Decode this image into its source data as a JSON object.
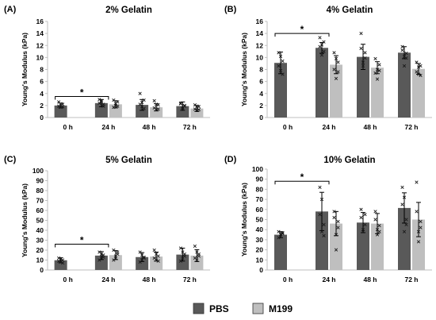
{
  "colors": {
    "pbs": "#595959",
    "m199": "#bfbfbf",
    "axis": "#bfbfbf",
    "point": "#1a1a1a"
  },
  "legend": [
    {
      "label": "PBS",
      "color": "#595959"
    },
    {
      "label": "M199",
      "color": "#bfbfbf"
    }
  ],
  "chart_data": [
    {
      "letter": "(A)",
      "title": "2% Gelatin",
      "type": "bar",
      "ylabel": "Young's Modulus (kPa)",
      "ylim": [
        0,
        16
      ],
      "yticks": [
        0,
        2,
        4,
        6,
        8,
        10,
        12,
        14,
        16
      ],
      "categories": [
        "0 h",
        "24 h",
        "48 h",
        "72 h"
      ],
      "series": [
        {
          "name": "PBS",
          "values": [
            2.0,
            2.4,
            2.1,
            1.9
          ],
          "errors": [
            0.4,
            0.6,
            0.9,
            0.7
          ],
          "points": [
            [
              2.6,
              1.7,
              2.2,
              1.9,
              2.3,
              1.8
            ],
            [
              3.0,
              2.6,
              1.9,
              2.4,
              2.8,
              2.2
            ],
            [
              4.0,
              2.5,
              1.5,
              2.2,
              1.8,
              2.9
            ],
            [
              2.4,
              1.4,
              1.9,
              2.3,
              1.6,
              2.0
            ]
          ]
        },
        {
          "name": "M199",
          "values": [
            null,
            2.2,
            1.7,
            1.5
          ],
          "errors": [
            null,
            0.6,
            0.6,
            0.5
          ],
          "points": [
            [],
            [
              2.9,
              2.0,
              2.6,
              1.7,
              2.3,
              1.9
            ],
            [
              2.8,
              1.3,
              2.1,
              1.6,
              2.2,
              1.4
            ],
            [
              2.1,
              1.2,
              1.8,
              1.4,
              1.9,
              1.3
            ]
          ]
        }
      ],
      "significance": [
        {
          "from": 0,
          "to": 1,
          "label": "*",
          "y": 3.5
        }
      ]
    },
    {
      "letter": "(B)",
      "title": "4% Gelatin",
      "type": "bar",
      "ylabel": "Young's Modulus (kPa)",
      "ylim": [
        0,
        16
      ],
      "yticks": [
        0,
        2,
        4,
        6,
        8,
        10,
        12,
        14,
        16
      ],
      "categories": [
        "0 h",
        "24 h",
        "48 h",
        "72 h"
      ],
      "series": [
        {
          "name": "PBS",
          "values": [
            9.1,
            11.6,
            10.1,
            10.8
          ],
          "errors": [
            1.8,
            0.9,
            2.1,
            1.0
          ],
          "points": [
            [
              10.8,
              7.8,
              9.4,
              8.6,
              10.2,
              7.2
            ],
            [
              13.3,
              12.1,
              11.0,
              11.8,
              10.4,
              12.6
            ],
            [
              14.0,
              9.2,
              10.8,
              11.5,
              8.6,
              9.9
            ],
            [
              11.8,
              10.2,
              9.9,
              11.2,
              8.6,
              10.7
            ]
          ]
        },
        {
          "name": "M199",
          "values": [
            null,
            8.8,
            8.3,
            8.1
          ],
          "errors": [
            null,
            1.5,
            1.0,
            0.9
          ],
          "points": [
            [],
            [
              10.8,
              6.5,
              9.2,
              8.0,
              9.8,
              7.6
            ],
            [
              9.8,
              6.4,
              8.8,
              7.4,
              8.0,
              7.8
            ],
            [
              9.2,
              7.2,
              8.6,
              7.6,
              8.4,
              7.0
            ]
          ]
        }
      ],
      "significance": [
        {
          "from": 0,
          "to": 1,
          "label": "*",
          "y": 14.0
        }
      ]
    },
    {
      "letter": "(C)",
      "title": "5% Gelatin",
      "type": "bar",
      "ylabel": "Young's Modulus (kPa)",
      "ylim": [
        0,
        100
      ],
      "yticks": [
        0,
        10,
        20,
        30,
        40,
        50,
        60,
        70,
        80,
        90,
        100
      ],
      "categories": [
        "0 h",
        "24 h",
        "48 h",
        "72 h"
      ],
      "series": [
        {
          "name": "PBS",
          "values": [
            9.8,
            14.5,
            13.0,
            15.5
          ],
          "errors": [
            2.5,
            4.0,
            4.5,
            6.5
          ],
          "points": [
            [
              12,
              8,
              10,
              9,
              11,
              7
            ],
            [
              18,
              12,
              15,
              10,
              16,
              13
            ],
            [
              18,
              10,
              13,
              8,
              15,
              12
            ],
            [
              22,
              12,
              16,
              9,
              18,
              14
            ]
          ]
        },
        {
          "name": "M199",
          "values": [
            null,
            15.0,
            13.5,
            14.5
          ],
          "errors": [
            null,
            4.5,
            4.5,
            6.0
          ],
          "points": [
            [],
            [
              20,
              12,
              16,
              10,
              14,
              18
            ],
            [
              20,
              10,
              14,
              12,
              16,
              9
            ],
            [
              24,
              10,
              16,
              12,
              18,
              14
            ]
          ]
        }
      ],
      "significance": [
        {
          "from": 0,
          "to": 1,
          "label": "*",
          "y": 26
        }
      ]
    },
    {
      "letter": "(D)",
      "title": "10% Gelatin",
      "type": "bar",
      "ylabel": "Young's Modulus (kPa)",
      "ylim": [
        0,
        100
      ],
      "yticks": [
        0,
        10,
        20,
        30,
        40,
        50,
        60,
        70,
        80,
        90,
        100
      ],
      "categories": [
        "0 h",
        "24 h",
        "48 h",
        "72 h"
      ],
      "series": [
        {
          "name": "PBS",
          "values": [
            35.0,
            58.0,
            47.0,
            61.5
          ],
          "errors": [
            3.0,
            19.0,
            10.0,
            15.0
          ],
          "points": [
            [
              38,
              33,
              36,
              32,
              35,
              37
            ],
            [
              82,
              38,
              45,
              55,
              70,
              34
            ],
            [
              60,
              40,
              45,
              52,
              38,
              55
            ],
            [
              82,
              38,
              50,
              65,
              72,
              45
            ]
          ]
        },
        {
          "name": "M199",
          "values": [
            null,
            46.0,
            46.0,
            50.0
          ],
          "errors": [
            null,
            12.0,
            10.0,
            17.0
          ],
          "points": [
            [],
            [
              58,
              20,
              42,
              52,
              35,
              48
            ],
            [
              58,
              35,
              44,
              50,
              40,
              38
            ],
            [
              87,
              28,
              42,
              58,
              38,
              48
            ]
          ]
        }
      ],
      "significance": [
        {
          "from": 0,
          "to": 1,
          "label": "*",
          "y": 88
        }
      ]
    }
  ]
}
